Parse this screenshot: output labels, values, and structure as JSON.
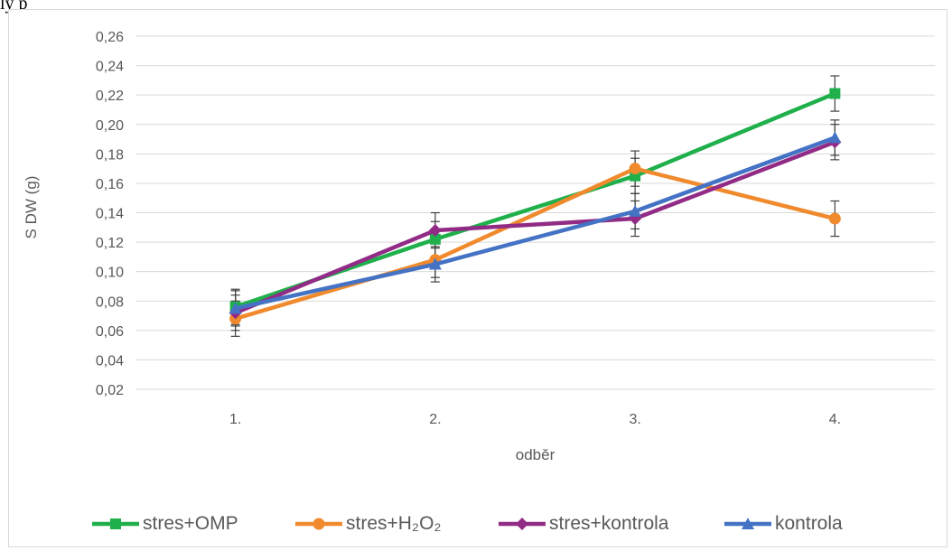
{
  "page": {
    "top_text": "ly p"
  },
  "chart_data": {
    "type": "line",
    "title": "",
    "xlabel": "odběr",
    "ylabel": "S DW (g)",
    "categories": [
      "1.",
      "2.",
      "3.",
      "4."
    ],
    "ylim": [
      0.02,
      0.26
    ],
    "yticks": [
      "0,02",
      "0,04",
      "0,06",
      "0,08",
      "0,10",
      "0,12",
      "0,14",
      "0,16",
      "0,18",
      "0,20",
      "0,22",
      "0,24",
      "0,26"
    ],
    "grid": true,
    "legend_position": "bottom",
    "series": [
      {
        "name": "stres+OMP",
        "color": "#1fb04c",
        "marker": "square",
        "values": [
          0.076,
          0.122,
          0.165,
          0.221
        ],
        "errors": [
          0.012,
          0.012,
          0.012,
          0.012
        ]
      },
      {
        "name": "stres+H₂O₂",
        "color": "#f08a2d",
        "marker": "circle",
        "values": [
          0.068,
          0.108,
          0.17,
          0.136
        ],
        "errors": [
          0.012,
          0.012,
          0.012,
          0.012
        ]
      },
      {
        "name": "stres+kontrola",
        "color": "#922b86",
        "marker": "diamond",
        "values": [
          0.072,
          0.128,
          0.136,
          0.188
        ],
        "errors": [
          0.012,
          0.012,
          0.012,
          0.012
        ]
      },
      {
        "name": "kontrola",
        "color": "#4472c4",
        "marker": "triangle",
        "values": [
          0.075,
          0.105,
          0.141,
          0.191
        ],
        "errors": [
          0.012,
          0.012,
          0.012,
          0.012
        ]
      }
    ]
  }
}
